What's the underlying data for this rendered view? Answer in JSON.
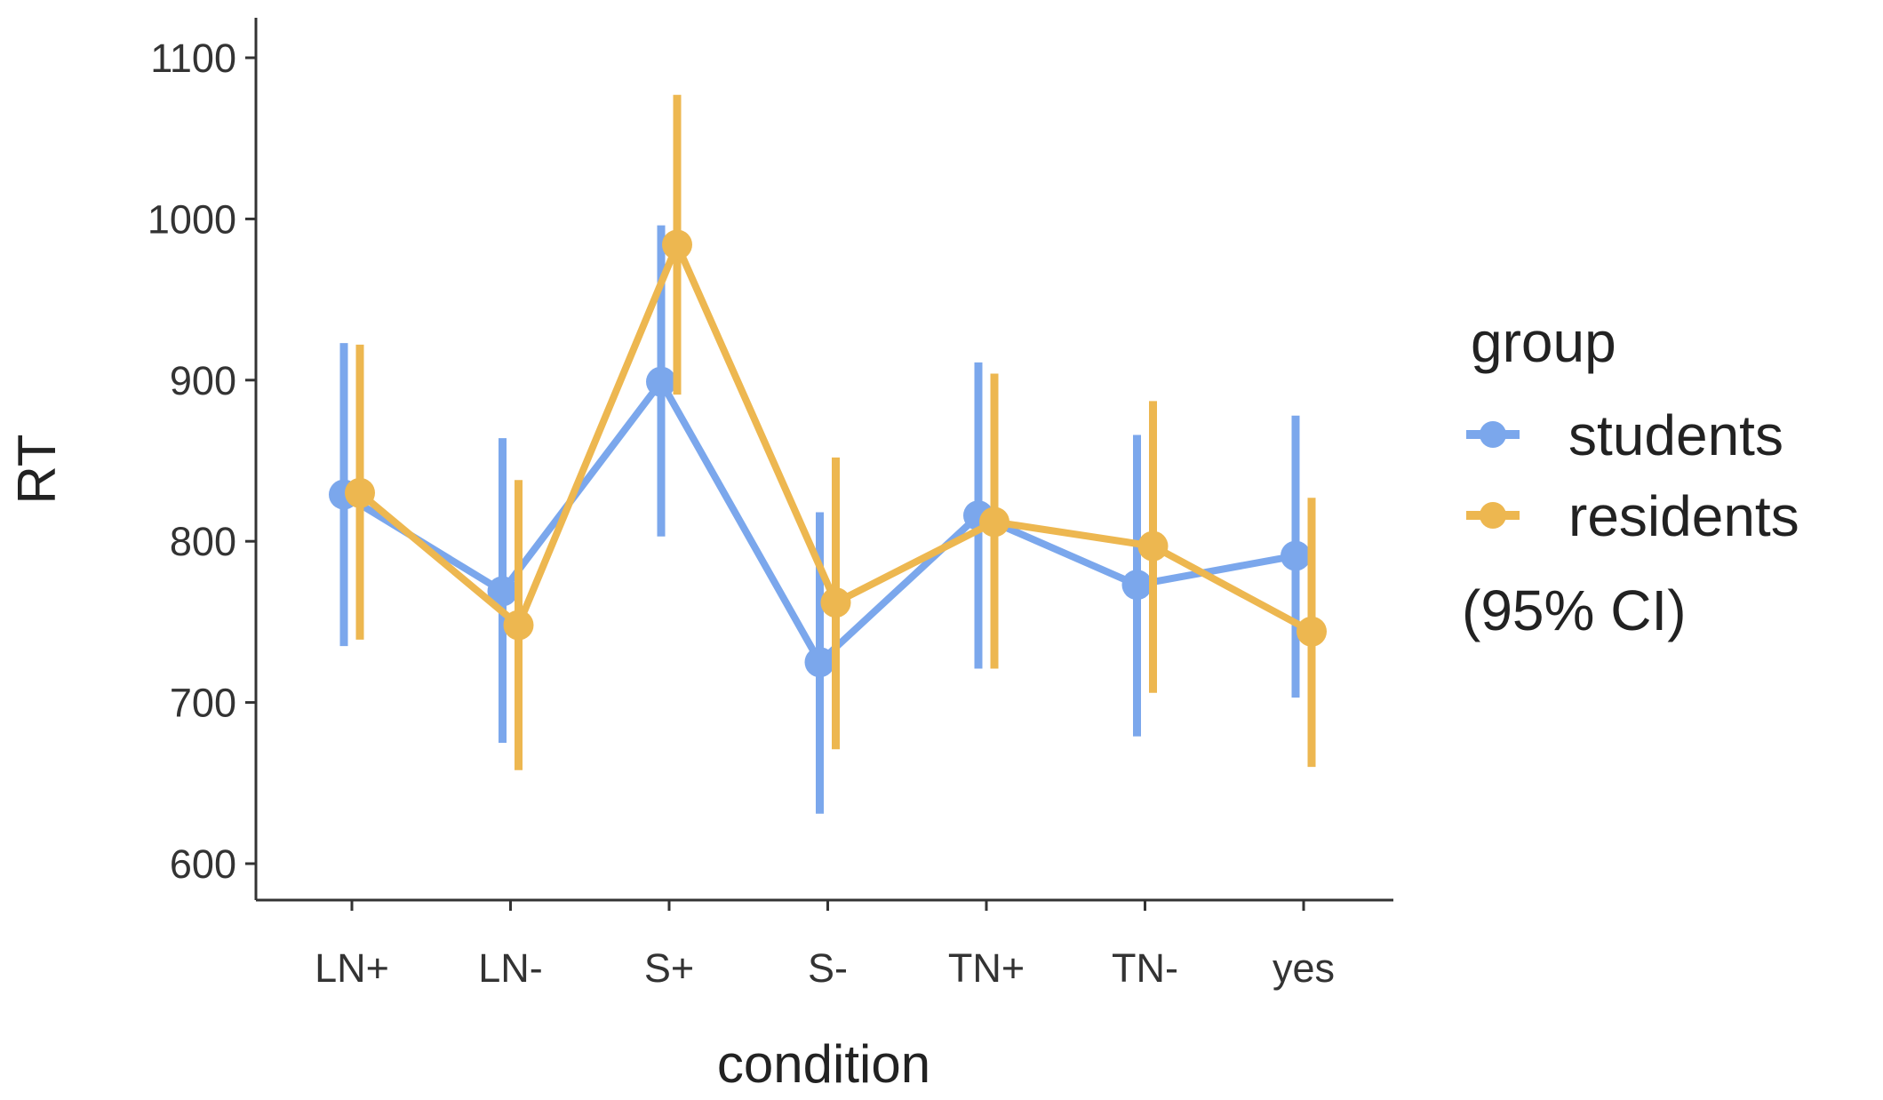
{
  "chart_data": {
    "type": "line",
    "title": "",
    "xlabel": "condition",
    "ylabel": "RT",
    "categories": [
      "LN+",
      "LN-",
      "S+",
      "S-",
      "TN+",
      "TN-",
      "yes"
    ],
    "ylim": [
      575,
      1125
    ],
    "yticks": [
      600,
      700,
      800,
      900,
      1000,
      1100
    ],
    "grid": false,
    "legend": {
      "title": "group",
      "note": "(95% CI)",
      "position": "right"
    },
    "series": [
      {
        "name": "students",
        "color": "#7BA7EC",
        "values": [
          829,
          769,
          899,
          725,
          816,
          773,
          791
        ],
        "ci_low": [
          735,
          675,
          803,
          631,
          721,
          679,
          703
        ],
        "ci_high": [
          923,
          864,
          996,
          818,
          911,
          866,
          878
        ]
      },
      {
        "name": "residents",
        "color": "#EDB750",
        "values": [
          830,
          748,
          984,
          762,
          812,
          797,
          744
        ],
        "ci_low": [
          739,
          658,
          891,
          671,
          721,
          706,
          660
        ],
        "ci_high": [
          922,
          838,
          1077,
          852,
          904,
          887,
          827
        ]
      }
    ]
  }
}
